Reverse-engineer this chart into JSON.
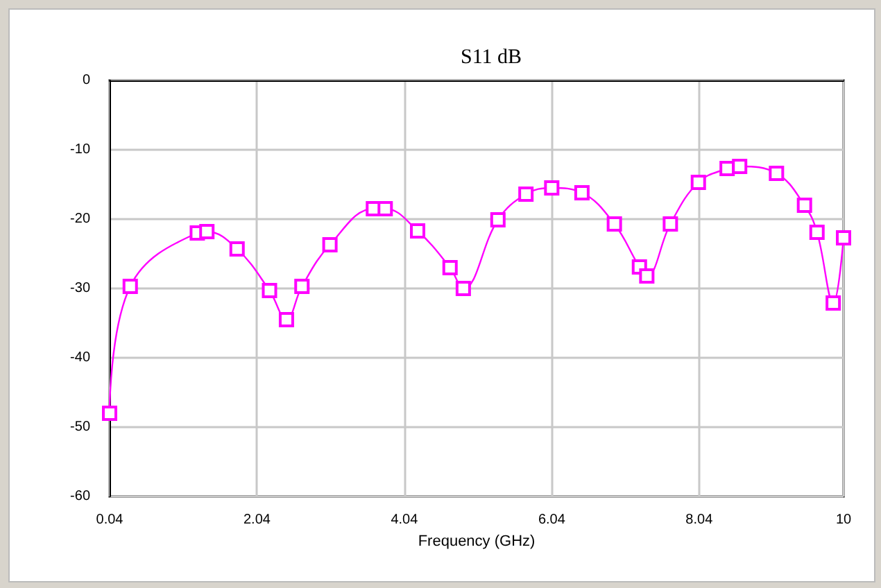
{
  "chart_data": {
    "type": "line",
    "title": "S11 dB",
    "xlabel": "Frequency (GHz)",
    "x": [
      0.04,
      0.32,
      1.23,
      1.36,
      1.77,
      2.21,
      2.44,
      2.65,
      3.03,
      3.62,
      3.78,
      4.22,
      4.66,
      4.84,
      5.31,
      5.69,
      6.04,
      6.45,
      6.89,
      7.23,
      7.33,
      7.65,
      8.03,
      8.42,
      8.59,
      9.09,
      9.47,
      9.64,
      9.86,
      10
    ],
    "series": [
      {
        "color": "#ff00ff",
        "values": [
          -48,
          -29.7,
          -22,
          -21.8,
          -24.3,
          -30.3,
          -34.5,
          -29.7,
          -23.7,
          -18.5,
          -18.5,
          -21.7,
          -27,
          -30,
          -20.1,
          -16.4,
          -15.5,
          -16.2,
          -20.7,
          -26.9,
          -28.2,
          -20.7,
          -14.7,
          -12.7,
          -12.4,
          -13.4,
          -18,
          -21.9,
          -32.1,
          -22.7
        ]
      }
    ],
    "xlim": [
      0.04,
      10
    ],
    "xticks": [
      0.04,
      2.04,
      4.04,
      6.04,
      8.04,
      10
    ],
    "ylim": [
      -60,
      0
    ],
    "yticks": [
      -60,
      -50,
      -40,
      -30,
      -20,
      -10,
      0
    ],
    "grid": true,
    "marker": "square",
    "line_style": "solid"
  }
}
